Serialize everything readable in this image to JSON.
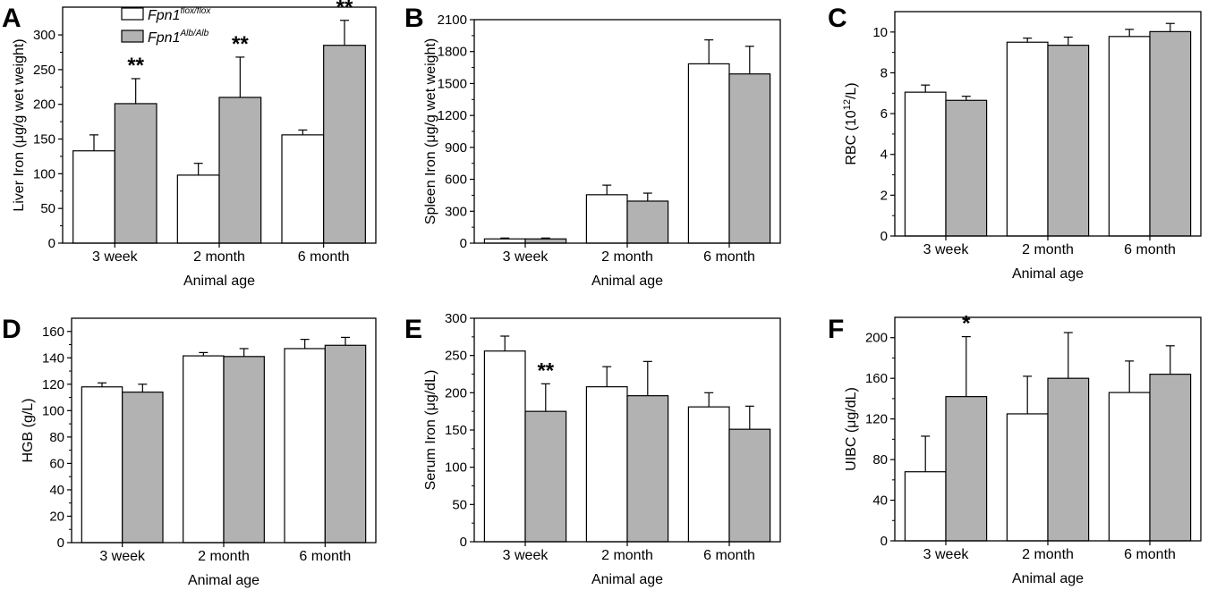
{
  "colors": {
    "series_1": "#ffffff",
    "series_2": "#b2b2b2",
    "stroke": "#000000"
  },
  "legend": {
    "entries": [
      {
        "base": "Fpn1",
        "sup": "flox/flox"
      },
      {
        "base": "Fpn1",
        "sup": "Alb/Alb"
      }
    ]
  },
  "chart_data": [
    {
      "panel": "A",
      "type": "bar",
      "categories": [
        "3 week",
        "2 month",
        "6 month"
      ],
      "xlabel": "Animal age",
      "ylabel": {
        "pre": "Liver Iron (",
        "mu": "μ",
        "post": "g/g wet weight)"
      },
      "ylim": [
        0,
        340
      ],
      "yticks": [
        0,
        50,
        100,
        150,
        200,
        250,
        300
      ],
      "series": [
        {
          "values": [
            133,
            98,
            156
          ],
          "errors": [
            23,
            17,
            7
          ]
        },
        {
          "values": [
            201,
            210,
            285
          ],
          "errors": [
            36,
            58,
            36
          ]
        }
      ],
      "annotations": [
        {
          "category": "3 week",
          "series": 2,
          "text": "**"
        },
        {
          "category": "2 month",
          "series": 2,
          "text": "**"
        },
        {
          "category": "6 month",
          "series": 2,
          "text": "**"
        }
      ]
    },
    {
      "panel": "B",
      "type": "bar",
      "categories": [
        "3 week",
        "2 month",
        "6 month"
      ],
      "xlabel": "Animal age",
      "ylabel": {
        "pre": "Spleen Iron (",
        "mu": "μ",
        "post": "g/g wet weight)"
      },
      "ylim": [
        0,
        2100
      ],
      "yticks": [
        0,
        300,
        600,
        900,
        1200,
        1500,
        1800,
        2100
      ],
      "series": [
        {
          "values": [
            40,
            455,
            1685
          ],
          "errors": [
            8,
            90,
            225
          ]
        },
        {
          "values": [
            40,
            395,
            1590
          ],
          "errors": [
            8,
            75,
            260
          ]
        }
      ],
      "annotations": []
    },
    {
      "panel": "C",
      "type": "bar",
      "categories": [
        "3 week",
        "2 month",
        "6 month"
      ],
      "xlabel": "Animal age",
      "ylabel": {
        "pre": "RBC (10",
        "sup": "12",
        "post": "/L)"
      },
      "ylim": [
        0,
        11
      ],
      "yticks": [
        0,
        2,
        4,
        6,
        8,
        10
      ],
      "series": [
        {
          "values": [
            7.05,
            9.5,
            9.78
          ],
          "errors": [
            0.35,
            0.2,
            0.35
          ]
        },
        {
          "values": [
            6.65,
            9.35,
            10.02
          ],
          "errors": [
            0.2,
            0.4,
            0.4
          ]
        }
      ],
      "annotations": []
    },
    {
      "panel": "D",
      "type": "bar",
      "categories": [
        "3 week",
        "2 month",
        "6 month"
      ],
      "xlabel": "Animal age",
      "ylabel": {
        "pre": "HGB (g/L)"
      },
      "ylim": [
        0,
        170
      ],
      "yticks": [
        0,
        20,
        40,
        60,
        80,
        100,
        120,
        140,
        160
      ],
      "series": [
        {
          "values": [
            118,
            141.5,
            147
          ],
          "errors": [
            3,
            2.5,
            7
          ]
        },
        {
          "values": [
            114,
            141,
            149.5
          ],
          "errors": [
            6,
            6,
            6
          ]
        }
      ],
      "annotations": []
    },
    {
      "panel": "E",
      "type": "bar",
      "categories": [
        "3 week",
        "2 month",
        "6 month"
      ],
      "xlabel": "Animal age",
      "ylabel": {
        "pre": "Serum Iron (",
        "mu": "μ",
        "post": "g/dL)"
      },
      "ylim": [
        0,
        300
      ],
      "yticks": [
        0,
        50,
        100,
        150,
        200,
        250,
        300
      ],
      "series": [
        {
          "values": [
            256,
            208,
            181
          ],
          "errors": [
            20,
            27,
            19
          ]
        },
        {
          "values": [
            175,
            196,
            151
          ],
          "errors": [
            37,
            46,
            31
          ]
        }
      ],
      "annotations": [
        {
          "category": "3 week",
          "series": 2,
          "text": "**"
        }
      ]
    },
    {
      "panel": "F",
      "type": "bar",
      "categories": [
        "3 week",
        "2 month",
        "6 month"
      ],
      "xlabel": "Animal age",
      "ylabel": {
        "pre": "UIBC (",
        "mu": "μ",
        "post": "g/dL)"
      },
      "ylim": [
        0,
        220
      ],
      "yticks": [
        0,
        40,
        80,
        120,
        160,
        200
      ],
      "series": [
        {
          "values": [
            68,
            125,
            146
          ],
          "errors": [
            35,
            37,
            31
          ]
        },
        {
          "values": [
            142,
            160,
            164
          ],
          "errors": [
            59,
            45,
            28
          ]
        }
      ],
      "annotations": [
        {
          "category": "3 week",
          "series": 2,
          "text": "*"
        }
      ]
    }
  ]
}
